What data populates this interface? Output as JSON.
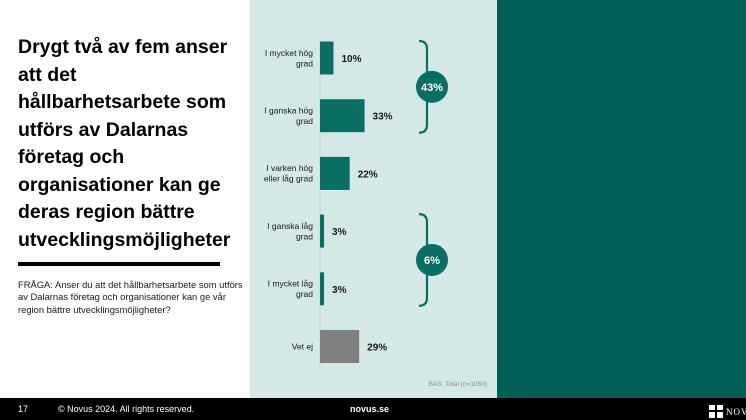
{
  "headline": "Drygt två av fem anser att det hållbarhetsarbete som utförs av Dalarnas företag och organisationer kan ge deras region bättre utvecklingsmöjligheter",
  "question": "FRÅGA: Anser du att det hållbarhetsarbete som utförs av Dalarnas företag och organisationer kan ge vår region bättre utvecklingsmöjligheter?",
  "footer": {
    "page_number": "17",
    "copyright": "© Novus 2024. All rights reserved.",
    "site": "novus.se",
    "logo": "NOVUS"
  },
  "colors": {
    "bar": "#0b6e63",
    "bar_dont_know": "#808080",
    "bracket": "#0b6e63",
    "chart_background": "#d4e8e6",
    "accent_panel": "#005f56"
  },
  "chart_data": {
    "type": "bar",
    "orientation": "horizontal",
    "categories": [
      [
        "I mycket hög",
        "grad"
      ],
      [
        "I ganska hög",
        "grad"
      ],
      [
        "I varken hög",
        "eller låg grad"
      ],
      [
        "I ganska låg",
        "grad"
      ],
      [
        "I mycket låg",
        "grad"
      ],
      [
        "Vet ej"
      ]
    ],
    "values": [
      10,
      33,
      22,
      3,
      3,
      29
    ],
    "value_labels": [
      "10%",
      "33%",
      "22%",
      "3%",
      "3%",
      "29%"
    ],
    "unit": "%",
    "xlim": [
      0,
      100
    ],
    "grid": false,
    "groups": [
      {
        "label": "43%",
        "from_index": 0,
        "to_index": 1
      },
      {
        "label": "6%",
        "from_index": 3,
        "to_index": 4
      }
    ],
    "base_note": "BAS: Total (n=1050)"
  }
}
